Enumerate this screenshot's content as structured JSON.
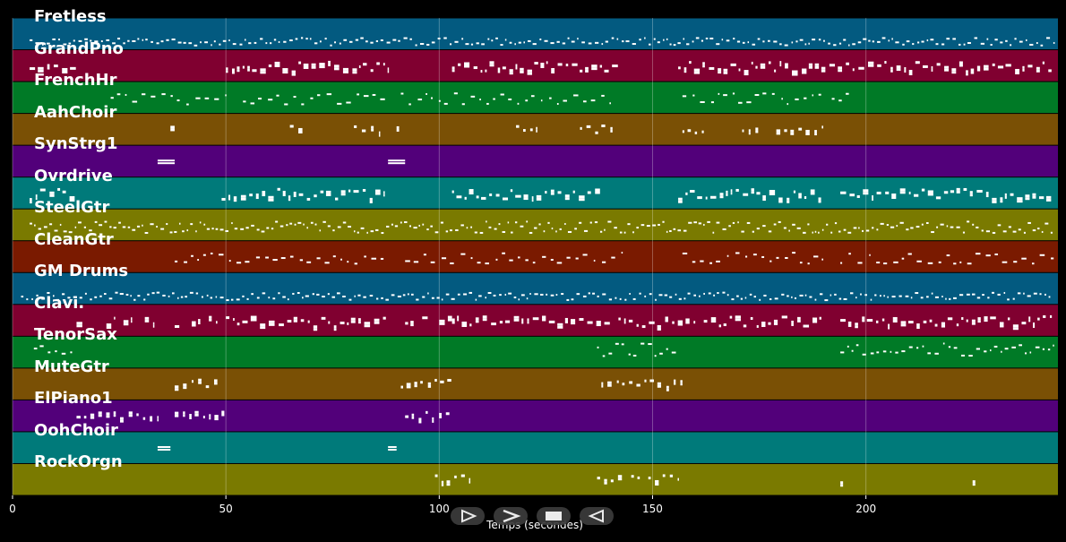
{
  "chart_data": {
    "type": "piano-roll",
    "xlabel": "Temps (secondes)",
    "xlim": [
      0,
      245
    ],
    "xticks": [
      0,
      50,
      100,
      150,
      200
    ],
    "grid": true,
    "tracks": [
      {
        "name": "Fretless",
        "color": "#035a80",
        "pattern": "dense-low",
        "segments": [
          [
            4,
            244
          ]
        ]
      },
      {
        "name": "GrandPno",
        "color": "#800030",
        "pattern": "blocky",
        "segments": [
          [
            4,
            15
          ],
          [
            50,
            88
          ],
          [
            103,
            142
          ],
          [
            156,
            244
          ]
        ]
      },
      {
        "name": "FrenchHr",
        "color": "#007a26",
        "pattern": "sparse-mid",
        "segments": [
          [
            23,
            50
          ],
          [
            54,
            88
          ],
          [
            91,
            141
          ],
          [
            157,
            190
          ],
          [
            192,
            196
          ]
        ]
      },
      {
        "name": "AahChoir",
        "color": "#7a5005",
        "pattern": "chords",
        "segments": [
          [
            37,
            38
          ],
          [
            65,
            69
          ],
          [
            80,
            86
          ],
          [
            90,
            91
          ],
          [
            118,
            123
          ],
          [
            133,
            141
          ],
          [
            157,
            162
          ],
          [
            171,
            175
          ],
          [
            179,
            190
          ]
        ]
      },
      {
        "name": "SynStrg1",
        "color": "#52007a",
        "pattern": "hold",
        "segments": [
          [
            34,
            38
          ],
          [
            88,
            92
          ]
        ]
      },
      {
        "name": "Ovrdrive",
        "color": "#007a7a",
        "pattern": "blocky",
        "segments": [
          [
            4,
            15
          ],
          [
            49,
            87
          ],
          [
            103,
            138
          ],
          [
            156,
            190
          ],
          [
            194,
            244
          ]
        ]
      },
      {
        "name": "SteelGtr",
        "color": "#7a7a00",
        "pattern": "dense",
        "segments": [
          [
            4,
            244
          ]
        ]
      },
      {
        "name": "CleanGtr",
        "color": "#7a1a00",
        "pattern": "sparse-mid",
        "segments": [
          [
            38,
            88
          ],
          [
            92,
            143
          ],
          [
            157,
            190
          ],
          [
            194,
            244
          ]
        ]
      },
      {
        "name": "GM Drums",
        "color": "#035a80",
        "pattern": "dense-low",
        "segments": [
          [
            2,
            244
          ]
        ]
      },
      {
        "name": "Clavi.",
        "color": "#800030",
        "pattern": "blocky",
        "segments": [
          [
            15,
            17
          ],
          [
            22,
            24
          ],
          [
            26,
            28
          ],
          [
            31,
            33
          ],
          [
            38,
            40
          ],
          [
            42,
            44
          ],
          [
            46,
            48
          ],
          [
            50,
            88
          ],
          [
            92,
            94
          ],
          [
            96,
            98
          ],
          [
            100,
            103
          ],
          [
            103,
            140
          ],
          [
            142,
            160
          ],
          [
            162,
            190
          ],
          [
            194,
            244
          ]
        ]
      },
      {
        "name": "TenorSax",
        "color": "#007a26",
        "pattern": "melody",
        "segments": [
          [
            5,
            14
          ],
          [
            137,
            156
          ],
          [
            194,
            244
          ]
        ]
      },
      {
        "name": "MuteGtr",
        "color": "#7a5005",
        "pattern": "chords",
        "segments": [
          [
            38,
            48
          ],
          [
            91,
            103
          ],
          [
            138,
            157
          ]
        ]
      },
      {
        "name": "ElPiano1",
        "color": "#52007a",
        "pattern": "chords",
        "segments": [
          [
            15,
            34
          ],
          [
            38,
            50
          ],
          [
            92,
            103
          ]
        ]
      },
      {
        "name": "OohChoir",
        "color": "#007a7a",
        "pattern": "hold",
        "segments": [
          [
            34,
            37
          ],
          [
            88,
            90
          ]
        ]
      },
      {
        "name": "RockOrgn",
        "color": "#7a7a00",
        "pattern": "chords",
        "segments": [
          [
            99,
            107
          ],
          [
            137,
            143
          ],
          [
            145,
            147
          ],
          [
            149,
            156
          ],
          [
            194,
            195
          ],
          [
            225,
            226
          ]
        ]
      }
    ]
  },
  "controls": {
    "play_button_icon": "play-outline-icon",
    "forward_button_icon": "chevron-right-icon",
    "stop_button_icon": "stop-icon",
    "back_button_icon": "rewind-icon"
  }
}
